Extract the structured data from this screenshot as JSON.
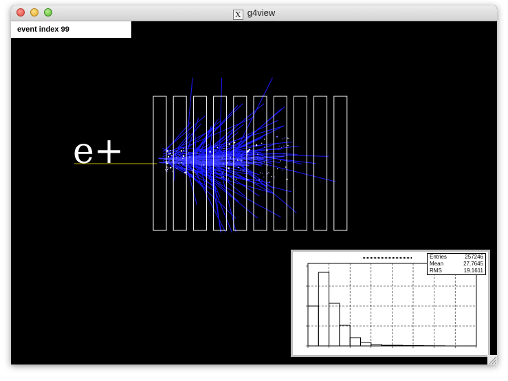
{
  "window": {
    "title": "g4view",
    "app_icon": "x11-icon"
  },
  "event_label": "event index 99",
  "particle_label": "e+",
  "colors": {
    "background": "#000000",
    "tracks": "#1a1aff",
    "beam": "#c8b400",
    "detector": "#ffffff"
  },
  "detector": {
    "layers": 10
  },
  "histogram": {
    "stats": [
      {
        "label": "Entries",
        "value": "257246"
      },
      {
        "label": "Mean",
        "value": "27.7645"
      },
      {
        "label": "RMS",
        "value": "19.1611"
      }
    ]
  }
}
